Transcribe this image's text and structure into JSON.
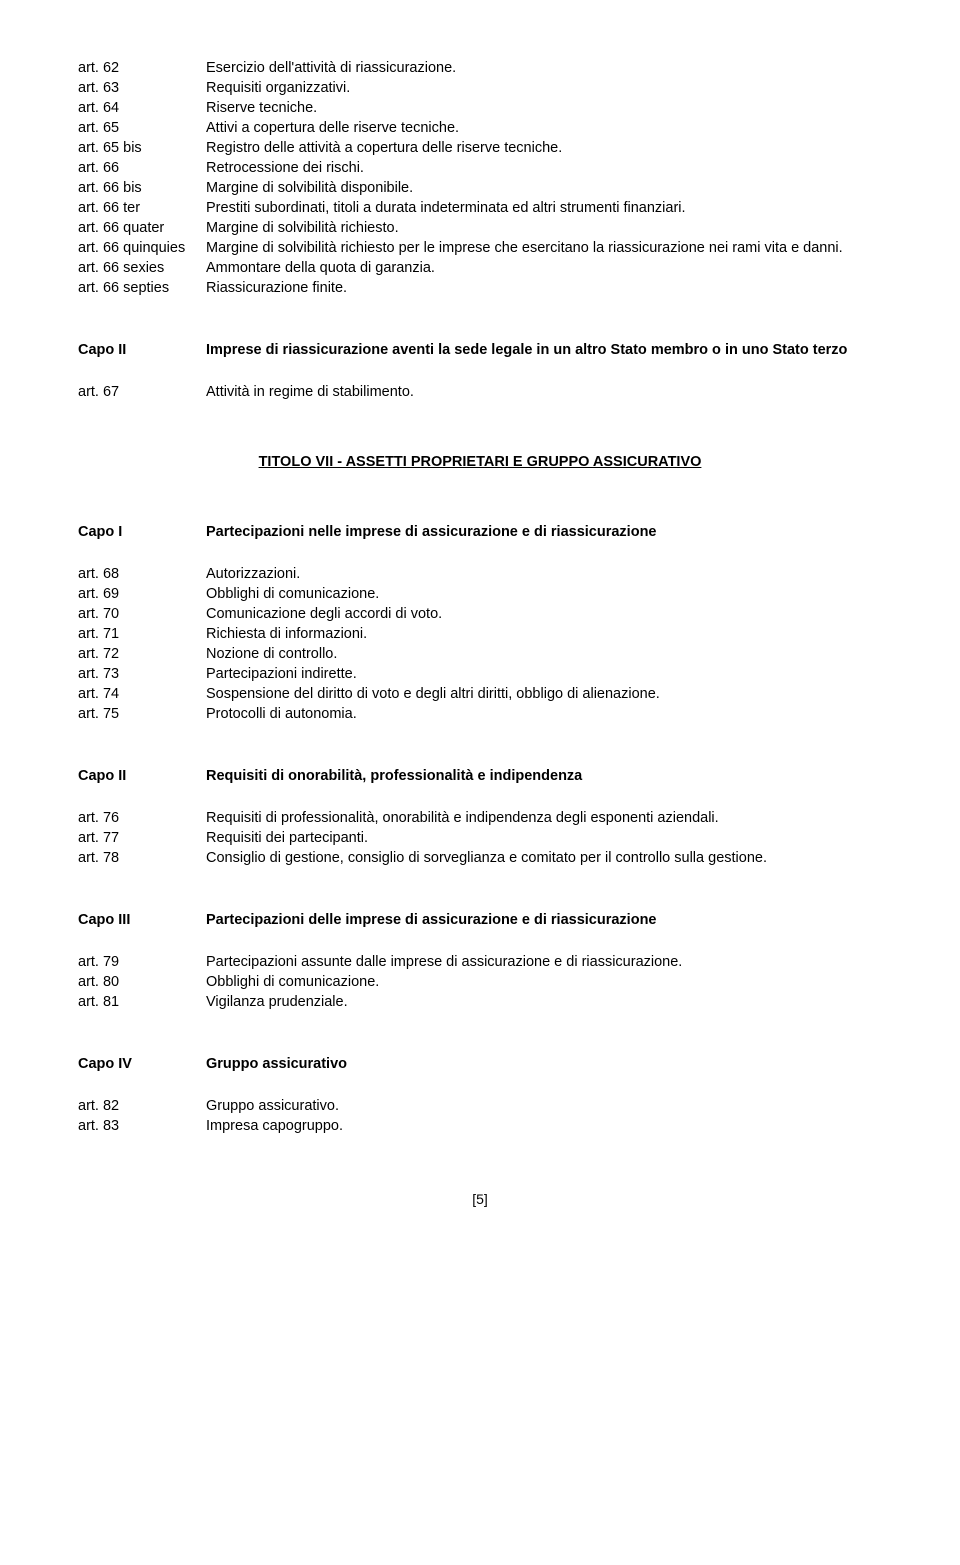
{
  "block1": [
    {
      "l": "art. 62",
      "d": "Esercizio dell'attività di riassicurazione."
    },
    {
      "l": "art. 63",
      "d": "Requisiti organizzativi."
    },
    {
      "l": "art. 64",
      "d": "Riserve tecniche."
    },
    {
      "l": "art. 65",
      "d": "Attivi a copertura delle riserve tecniche."
    },
    {
      "l": "art. 65 bis",
      "d": "Registro delle attività a copertura delle riserve tecniche."
    },
    {
      "l": "art. 66",
      "d": "Retrocessione dei rischi."
    },
    {
      "l": "art. 66 bis",
      "d": "Margine di solvibilità disponibile."
    },
    {
      "l": "art. 66 ter",
      "d": "Prestiti subordinati, titoli a durata indeterminata ed altri strumenti finanziari."
    },
    {
      "l": "art. 66 quater",
      "d": "Margine di solvibilità richiesto."
    },
    {
      "l": "art. 66 quinquies",
      "d": "Margine di solvibilità richiesto per le imprese che esercitano la riassicurazione nei rami vita e danni."
    },
    {
      "l": "art. 66 sexies",
      "d": "Ammontare della quota di garanzia."
    },
    {
      "l": "art. 66 septies",
      "d": "Riassicurazione finite."
    }
  ],
  "capo2a": {
    "l": "Capo II",
    "d": "Imprese di riassicurazione aventi la sede legale in un altro Stato membro o in uno Stato terzo"
  },
  "row67": {
    "l": "art. 67",
    "d": "Attività in regime di stabilimento."
  },
  "title7": "TITOLO VII - ASSETTI PROPRIETARI E GRUPPO ASSICURATIVO",
  "capo1": {
    "l": "Capo I",
    "d": "Partecipazioni nelle imprese di assicurazione e di riassicurazione"
  },
  "block2": [
    {
      "l": "art. 68",
      "d": "Autorizzazioni."
    },
    {
      "l": "art. 69",
      "d": "Obblighi di comunicazione."
    },
    {
      "l": "art. 70",
      "d": "Comunicazione degli accordi di voto."
    },
    {
      "l": "art. 71",
      "d": "Richiesta di informazioni."
    },
    {
      "l": "art. 72",
      "d": "Nozione di controllo."
    },
    {
      "l": "art. 73",
      "d": "Partecipazioni indirette."
    },
    {
      "l": "art. 74",
      "d": "Sospensione del diritto di voto e degli altri diritti, obbligo di alienazione."
    },
    {
      "l": "art. 75",
      "d": "Protocolli di autonomia."
    }
  ],
  "capo2b": {
    "l": "Capo II",
    "d": "Requisiti di onorabilità, professionalità e indipendenza"
  },
  "block3": [
    {
      "l": "art. 76",
      "d": "Requisiti di professionalità, onorabilità e indipendenza degli esponenti aziendali."
    },
    {
      "l": "art. 77",
      "d": "Requisiti dei partecipanti."
    },
    {
      "l": "art. 78",
      "d": "Consiglio di gestione, consiglio di sorveglianza e comitato per il controllo sulla gestione."
    }
  ],
  "capo3": {
    "l": "Capo III",
    "d": "Partecipazioni delle imprese di assicurazione e di riassicurazione"
  },
  "block4": [
    {
      "l": "art. 79",
      "d": "Partecipazioni assunte dalle imprese di assicurazione e di riassicurazione."
    },
    {
      "l": "art. 80",
      "d": "Obblighi di comunicazione."
    },
    {
      "l": "art. 81",
      "d": "Vigilanza prudenziale."
    }
  ],
  "capo4": {
    "l": "Capo IV",
    "d": "Gruppo assicurativo"
  },
  "block5": [
    {
      "l": "art. 82",
      "d": "Gruppo assicurativo."
    },
    {
      "l": "art. 83",
      "d": "Impresa capogruppo."
    }
  ],
  "pagenum": "[5]"
}
